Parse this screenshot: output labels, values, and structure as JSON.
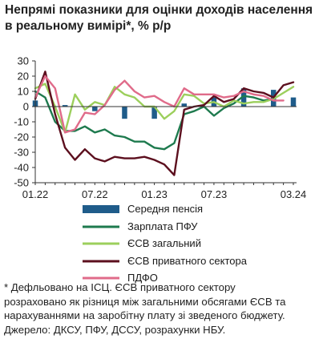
{
  "chart_data": {
    "type": "line",
    "title": "Непрямі показники для оцінки доходів населення в реальному вимірі*, % р/р",
    "title_lines": [
      "Непрямі показники для оцінки доходів населення",
      "в реальному вимірі*, % р/р"
    ],
    "x": [
      "01.22",
      "02.22",
      "03.22",
      "04.22",
      "05.22",
      "06.22",
      "07.22",
      "08.22",
      "09.22",
      "10.22",
      "11.22",
      "12.22",
      "01.23",
      "02.23",
      "03.23",
      "04.23",
      "05.23",
      "06.23",
      "07.23",
      "08.23",
      "09.23",
      "10.23",
      "11.23",
      "12.23",
      "01.24",
      "02.24",
      "03.24"
    ],
    "x_tick_labels": [
      "01.22",
      "07.22",
      "01.23",
      "07.23",
      "03.24"
    ],
    "ylim": [
      -50,
      30
    ],
    "y_ticks": [
      30,
      20,
      10,
      0,
      -10,
      -20,
      -30,
      -40,
      -50
    ],
    "grid": false,
    "legend_position": "bottom",
    "bar_series": {
      "name": "Середня пенсія",
      "color": "#1f5c8a",
      "values": [
        4,
        null,
        null,
        1,
        null,
        null,
        -3,
        null,
        null,
        -8,
        null,
        null,
        -8,
        null,
        null,
        2,
        null,
        null,
        6,
        null,
        null,
        12,
        null,
        null,
        11,
        null,
        6
      ]
    },
    "series": [
      {
        "name": "Зарплата ПФУ",
        "color": "#1e7a4e",
        "values": [
          10,
          6,
          -10,
          -16,
          -16,
          -13,
          -17,
          -15,
          -19,
          -20,
          -23,
          -23,
          -27,
          -28,
          -24,
          -5,
          -3,
          0,
          -6,
          -1,
          2,
          7,
          6,
          4,
          5,
          null,
          null
        ]
      },
      {
        "name": "ЄСВ загальний",
        "color": "#9ccf5c",
        "values": [
          12,
          15,
          0,
          -17,
          8,
          -2,
          3,
          1,
          13,
          8,
          6,
          0,
          0,
          -8,
          -3,
          8,
          7,
          2,
          3,
          0,
          4,
          2,
          3,
          3,
          5,
          9,
          13
        ]
      },
      {
        "name": "ЄСВ приватного сектора",
        "color": "#5c0f1e",
        "values": [
          5,
          23,
          -5,
          -27,
          -35,
          -28,
          -34,
          -36,
          -33,
          -34,
          -34,
          -33,
          -35,
          -38,
          -45,
          -2,
          0,
          1,
          7,
          3,
          5,
          12,
          10,
          9,
          6,
          14,
          16
        ]
      },
      {
        "name": "ПДФО",
        "color": "#e06b8a",
        "values": [
          6,
          20,
          12,
          -17,
          -15,
          -4,
          -5,
          1,
          11,
          17,
          10,
          6,
          7,
          3,
          0,
          12,
          8,
          8,
          8,
          6,
          7,
          10,
          8,
          7,
          4,
          4,
          null
        ]
      }
    ]
  },
  "legend": {
    "pension": "Середня пенсія",
    "salary": "Зарплата ПФУ",
    "esv_total": "ЄСВ загальний",
    "esv_private": "ЄСВ приватного сектора",
    "pdfo": "ПДФО"
  },
  "note": {
    "lines": [
      "* Дефльовано на ІСЦ. ЄСВ приватного сектору",
      "розраховано як різниця між загальними обсягами ЄСВ та",
      "нарахуваннями на заробітну плату зі зведеного бюджету.",
      "Джерело: ДКСУ, ПФУ, ДССУ, розрахунки НБУ."
    ]
  }
}
